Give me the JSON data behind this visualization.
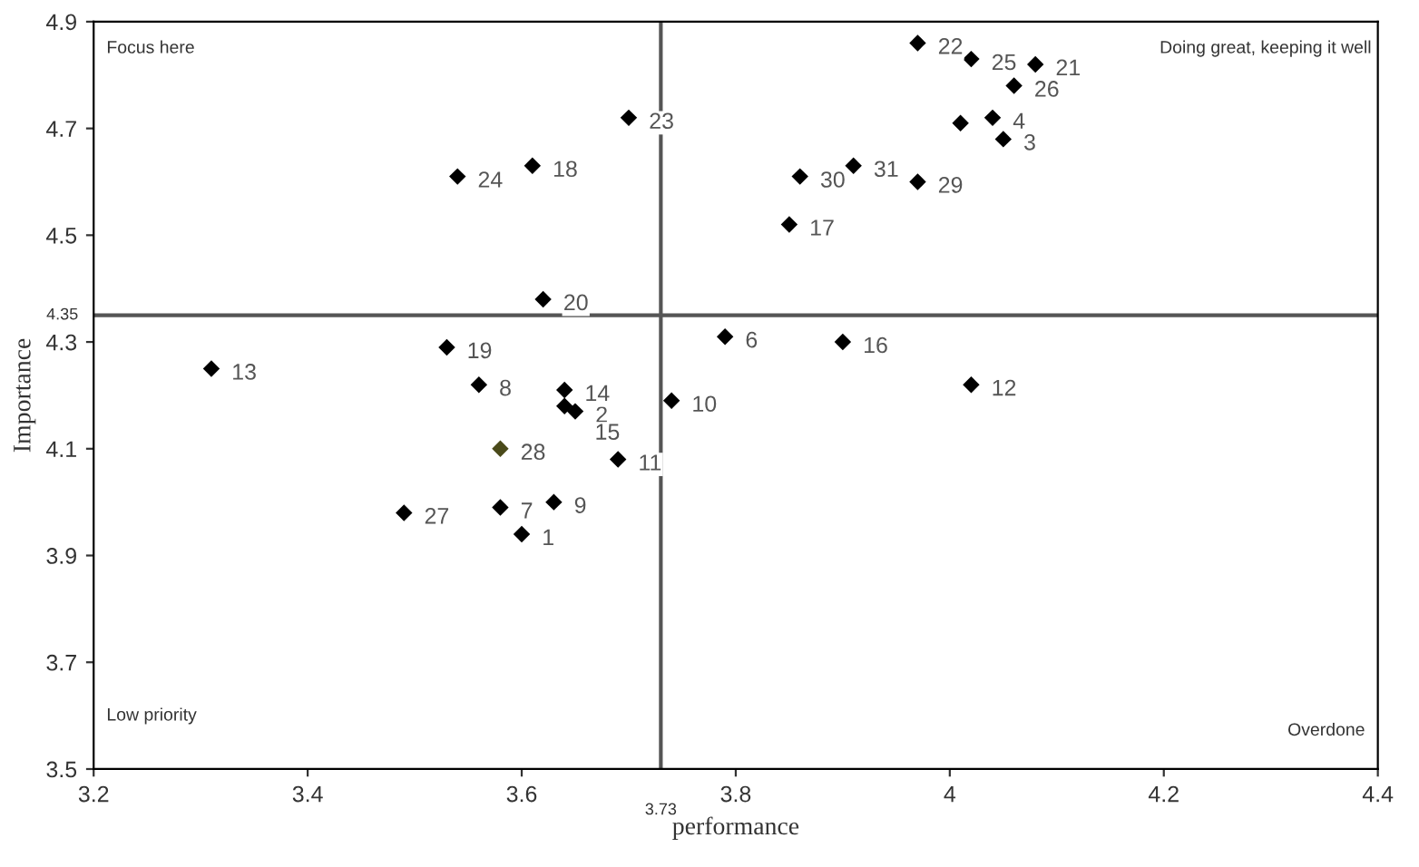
{
  "chart_data": {
    "type": "scatter",
    "xlabel": "performance",
    "ylabel": "Importance",
    "x": [
      3.6,
      3.65,
      4.05,
      4.04,
      4.01,
      3.79,
      3.58,
      3.56,
      3.63,
      3.74,
      3.69,
      4.02,
      3.31,
      3.64,
      3.64,
      3.9,
      3.85,
      3.61,
      3.53,
      3.62,
      4.08,
      3.97,
      3.7,
      3.54,
      4.02,
      4.06,
      3.49,
      3.58,
      3.97,
      3.86,
      3.91
    ],
    "values": [
      3.94,
      4.17,
      4.68,
      4.72,
      4.71,
      4.31,
      3.99,
      4.22,
      4.0,
      4.19,
      4.08,
      4.22,
      4.25,
      4.21,
      4.18,
      4.3,
      4.52,
      4.63,
      4.29,
      4.38,
      4.82,
      4.86,
      4.72,
      4.61,
      4.83,
      4.78,
      3.98,
      4.1,
      4.6,
      4.61,
      4.63
    ],
    "colors": [
      "#000000",
      "#000000",
      "#000000",
      "#000000",
      "#000000",
      "#000000",
      "#000000",
      "#000000",
      "#000000",
      "#000000",
      "#000000",
      "#000000",
      "#000000",
      "#000000",
      "#000000",
      "#000000",
      "#000000",
      "#000000",
      "#000000",
      "#000000",
      "#000000",
      "#000000",
      "#000000",
      "#000000",
      "#000000",
      "#000000",
      "#000000",
      "#4a4a1a",
      "#000000",
      "#000000",
      "#000000"
    ],
    "marker": "diamond",
    "xlim": [
      3.2,
      4.4
    ],
    "xticks": [
      3.2,
      3.4,
      3.6,
      3.8,
      4,
      4.2,
      4.4
    ],
    "ylim": [
      3.5,
      4.9
    ],
    "yticks": [
      3.5,
      3.7,
      3.9,
      4.1,
      4.3,
      4.5,
      4.7,
      4.9
    ],
    "grid": false,
    "legend": false,
    "ref_lines": [
      {
        "axis": "x",
        "value": 3.73,
        "label": "3.73",
        "color": "#555555"
      },
      {
        "axis": "y",
        "value": 4.35,
        "label": "4.35",
        "color": "#555555"
      }
    ],
    "annotations": [
      "Focus here",
      "Doing great, keeping it well",
      "Low priority",
      "Overdone",
      {
        "text": "1",
        "x": 3.6,
        "y": 3.94
      },
      {
        "text": "2",
        "x": 3.65,
        "y": 4.17
      },
      {
        "text": "3",
        "x": 4.05,
        "y": 4.68
      },
      {
        "text": "4",
        "x": 4.04,
        "y": 4.72
      },
      {
        "text": "6",
        "x": 3.79,
        "y": 4.31
      },
      {
        "text": "7",
        "x": 3.58,
        "y": 3.99
      },
      {
        "text": "8",
        "x": 3.56,
        "y": 4.22
      },
      {
        "text": "9",
        "x": 3.63,
        "y": 4.0
      },
      {
        "text": "10",
        "x": 3.74,
        "y": 4.19
      },
      {
        "text": "11",
        "x": 3.69,
        "y": 4.08
      },
      {
        "text": "12",
        "x": 4.02,
        "y": 4.22
      },
      {
        "text": "13",
        "x": 3.31,
        "y": 4.25
      },
      {
        "text": "14",
        "x": 3.64,
        "y": 4.21
      },
      {
        "text": "15",
        "x": 3.64,
        "y": 4.18
      },
      {
        "text": "16",
        "x": 3.9,
        "y": 4.3
      },
      {
        "text": "17",
        "x": 3.85,
        "y": 4.52
      },
      {
        "text": "18",
        "x": 3.61,
        "y": 4.63
      },
      {
        "text": "19",
        "x": 3.53,
        "y": 4.29
      },
      {
        "text": "20",
        "x": 3.62,
        "y": 4.38
      },
      {
        "text": "21",
        "x": 4.08,
        "y": 4.82
      },
      {
        "text": "22",
        "x": 3.97,
        "y": 4.86
      },
      {
        "text": "23",
        "x": 3.7,
        "y": 4.72
      },
      {
        "text": "24",
        "x": 3.54,
        "y": 4.61
      },
      {
        "text": "25",
        "x": 4.02,
        "y": 4.83
      },
      {
        "text": "26",
        "x": 4.06,
        "y": 4.78
      },
      {
        "text": "27",
        "x": 3.49,
        "y": 3.98
      },
      {
        "text": "28",
        "x": 3.58,
        "y": 4.1
      },
      {
        "text": "29",
        "x": 3.97,
        "y": 4.6
      },
      {
        "text": "30",
        "x": 3.86,
        "y": 4.61
      },
      {
        "text": "31",
        "x": 3.91,
        "y": 4.63
      }
    ]
  }
}
